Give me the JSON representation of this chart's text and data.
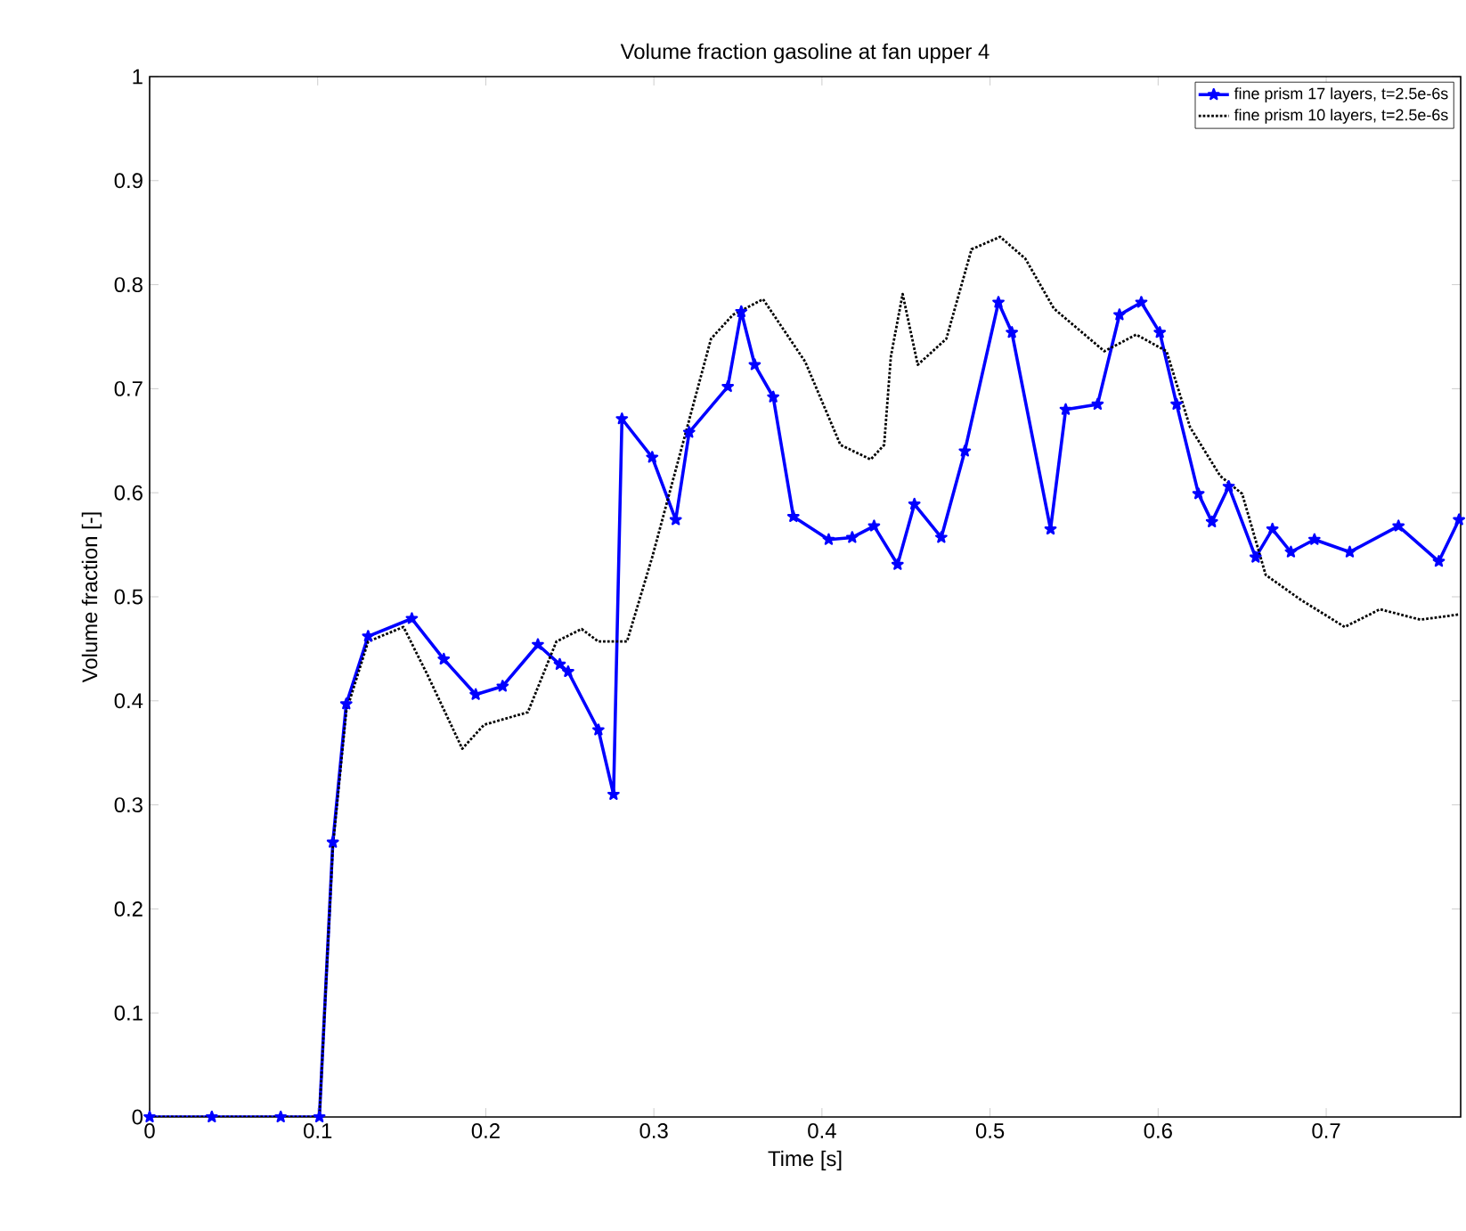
{
  "chart_data": {
    "type": "line",
    "title": "Volume fraction gasoline at fan upper 4",
    "xlabel": "Time [s]",
    "ylabel": "Volume fraction [-]",
    "xlim": [
      0,
      0.78
    ],
    "ylim": [
      0,
      1
    ],
    "xticks": [
      0,
      0.1,
      0.2,
      0.3,
      0.4,
      0.5,
      0.6,
      0.7
    ],
    "yticks": [
      0,
      0.1,
      0.2,
      0.3,
      0.4,
      0.5,
      0.6,
      0.7,
      0.8,
      0.9,
      1
    ],
    "grid": false,
    "legend": "top right",
    "series": [
      {
        "name": "fine prism 17 layers, t=2.5e-6s",
        "color": "#0000ff",
        "line_style": "solid",
        "marker": "star",
        "x": [
          0,
          0.037,
          0.078,
          0.101,
          0.109,
          0.117,
          0.13,
          0.156,
          0.175,
          0.194,
          0.21,
          0.231,
          0.244,
          0.249,
          0.267,
          0.276,
          0.281,
          0.299,
          0.313,
          0.321,
          0.344,
          0.352,
          0.36,
          0.371,
          0.383,
          0.404,
          0.418,
          0.431,
          0.445,
          0.455,
          0.471,
          0.485,
          0.505,
          0.513,
          0.536,
          0.545,
          0.564,
          0.577,
          0.59,
          0.601,
          0.611,
          0.624,
          0.632,
          0.642,
          0.658,
          0.668,
          0.679,
          0.693,
          0.714,
          0.743,
          0.767,
          0.779
        ],
        "values": [
          0,
          0,
          0,
          0,
          0.264,
          0.397,
          0.462,
          0.479,
          0.44,
          0.406,
          0.414,
          0.454,
          0.435,
          0.428,
          0.372,
          0.31,
          0.671,
          0.634,
          0.574,
          0.658,
          0.702,
          0.774,
          0.723,
          0.692,
          0.577,
          0.555,
          0.557,
          0.568,
          0.531,
          0.589,
          0.557,
          0.64,
          0.783,
          0.754,
          0.565,
          0.68,
          0.685,
          0.771,
          0.783,
          0.754,
          0.685,
          0.599,
          0.572,
          0.606,
          0.538,
          0.565,
          0.543,
          0.555,
          0.543,
          0.568,
          0.534,
          0.574
        ]
      },
      {
        "name": "fine prism 10 layers, t=2.5e-6s",
        "color": "#000000",
        "line_style": "dotted",
        "marker": "none",
        "x": [
          0,
          0.101,
          0.109,
          0.117,
          0.13,
          0.151,
          0.165,
          0.186,
          0.199,
          0.225,
          0.242,
          0.257,
          0.267,
          0.284,
          0.299,
          0.316,
          0.334,
          0.347,
          0.365,
          0.39,
          0.411,
          0.429,
          0.437,
          0.441,
          0.448,
          0.457,
          0.474,
          0.489,
          0.506,
          0.521,
          0.538,
          0.568,
          0.587,
          0.605,
          0.619,
          0.637,
          0.65,
          0.664,
          0.685,
          0.711,
          0.732,
          0.756,
          0.779
        ],
        "values": [
          0,
          0,
          0.26,
          0.39,
          0.457,
          0.471,
          0.426,
          0.354,
          0.377,
          0.389,
          0.457,
          0.469,
          0.457,
          0.457,
          0.538,
          0.64,
          0.748,
          0.771,
          0.786,
          0.726,
          0.646,
          0.632,
          0.646,
          0.731,
          0.791,
          0.723,
          0.748,
          0.834,
          0.846,
          0.825,
          0.777,
          0.736,
          0.752,
          0.736,
          0.663,
          0.616,
          0.599,
          0.521,
          0.497,
          0.471,
          0.488,
          0.478,
          0.483
        ]
      }
    ]
  }
}
